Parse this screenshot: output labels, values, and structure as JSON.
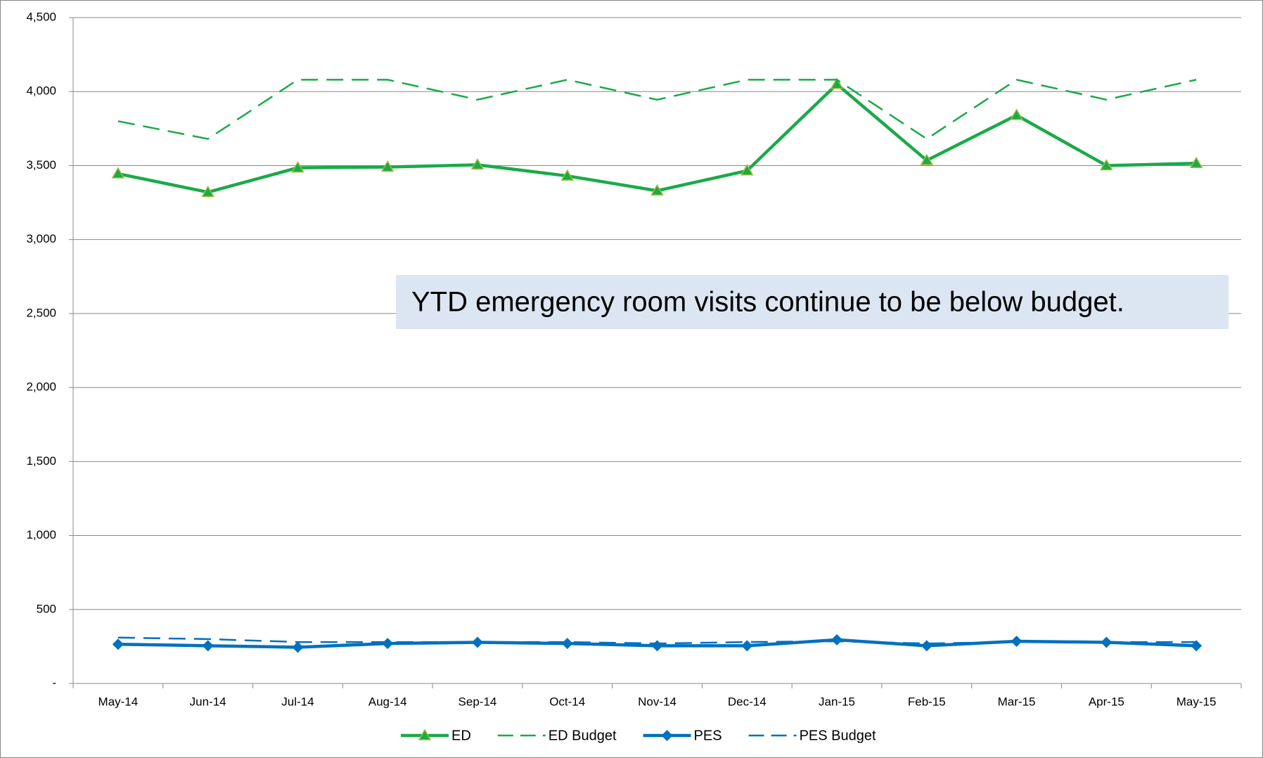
{
  "chart_data": {
    "type": "line",
    "annotation": "YTD emergency room visits continue to be below budget.",
    "categories": [
      "May-14",
      "Jun-14",
      "Jul-14",
      "Aug-14",
      "Sep-14",
      "Oct-14",
      "Nov-14",
      "Dec-14",
      "Jan-15",
      "Feb-15",
      "Mar-15",
      "Apr-15",
      "May-15"
    ],
    "series": [
      {
        "name": "ED",
        "color": "#1aaa48",
        "dashed": false,
        "marker": "triangle",
        "values": [
          3445,
          3320,
          3485,
          3490,
          3505,
          3430,
          3330,
          3465,
          4050,
          3535,
          3840,
          3500,
          3515
        ]
      },
      {
        "name": "ED Budget",
        "color": "#1aaa48",
        "dashed": true,
        "values": [
          3800,
          3680,
          4080,
          4080,
          3945,
          4080,
          3945,
          4080,
          4080,
          3680,
          4080,
          3945,
          4080
        ]
      },
      {
        "name": "PES",
        "color": "#0070c0",
        "dashed": false,
        "marker": "diamond",
        "values": [
          265,
          255,
          245,
          270,
          278,
          270,
          255,
          255,
          295,
          255,
          285,
          278,
          255
        ]
      },
      {
        "name": "PES Budget",
        "color": "#0070c0",
        "dashed": true,
        "values": [
          310,
          300,
          280,
          280,
          280,
          280,
          270,
          280,
          285,
          270,
          280,
          280,
          280
        ]
      }
    ],
    "ylim": [
      0,
      4500
    ],
    "yticks": [
      {
        "value": 0,
        "label": "-"
      },
      500,
      {
        "value": 1000,
        "label": "1,000"
      },
      {
        "value": 1500,
        "label": "1,500"
      },
      {
        "value": 2000,
        "label": "2,000"
      },
      {
        "value": 2500,
        "label": "2,500"
      },
      {
        "value": 3000,
        "label": "3,000"
      },
      {
        "value": 3500,
        "label": "3,500"
      },
      {
        "value": 4000,
        "label": "4,000"
      },
      {
        "value": 4500,
        "label": "4,500"
      }
    ],
    "grid": true,
    "legend": "bottom"
  }
}
